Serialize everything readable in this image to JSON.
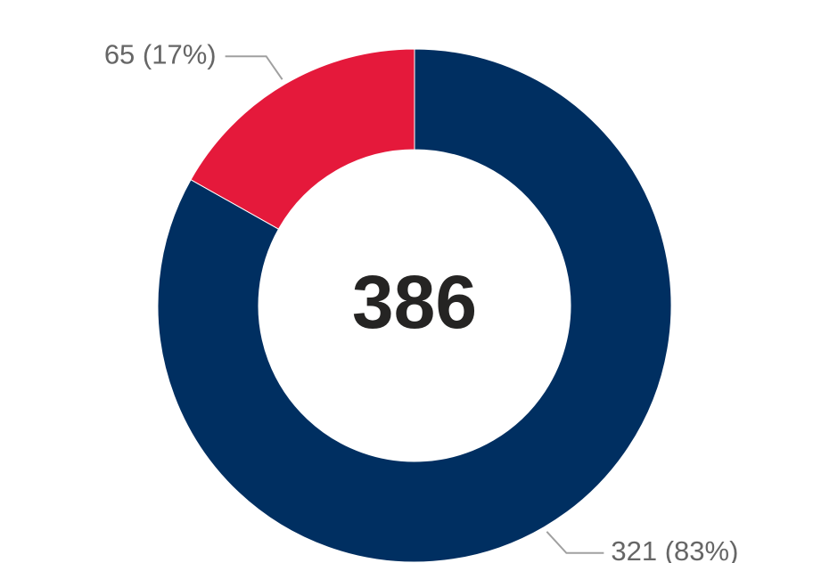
{
  "chart_data": {
    "type": "pie",
    "donut": true,
    "values": [
      321,
      65
    ],
    "value_labels": [
      "321 (83%)",
      "65 (17%)"
    ],
    "colors": [
      "#002f61",
      "#e5193b"
    ],
    "center_label": 386
  }
}
